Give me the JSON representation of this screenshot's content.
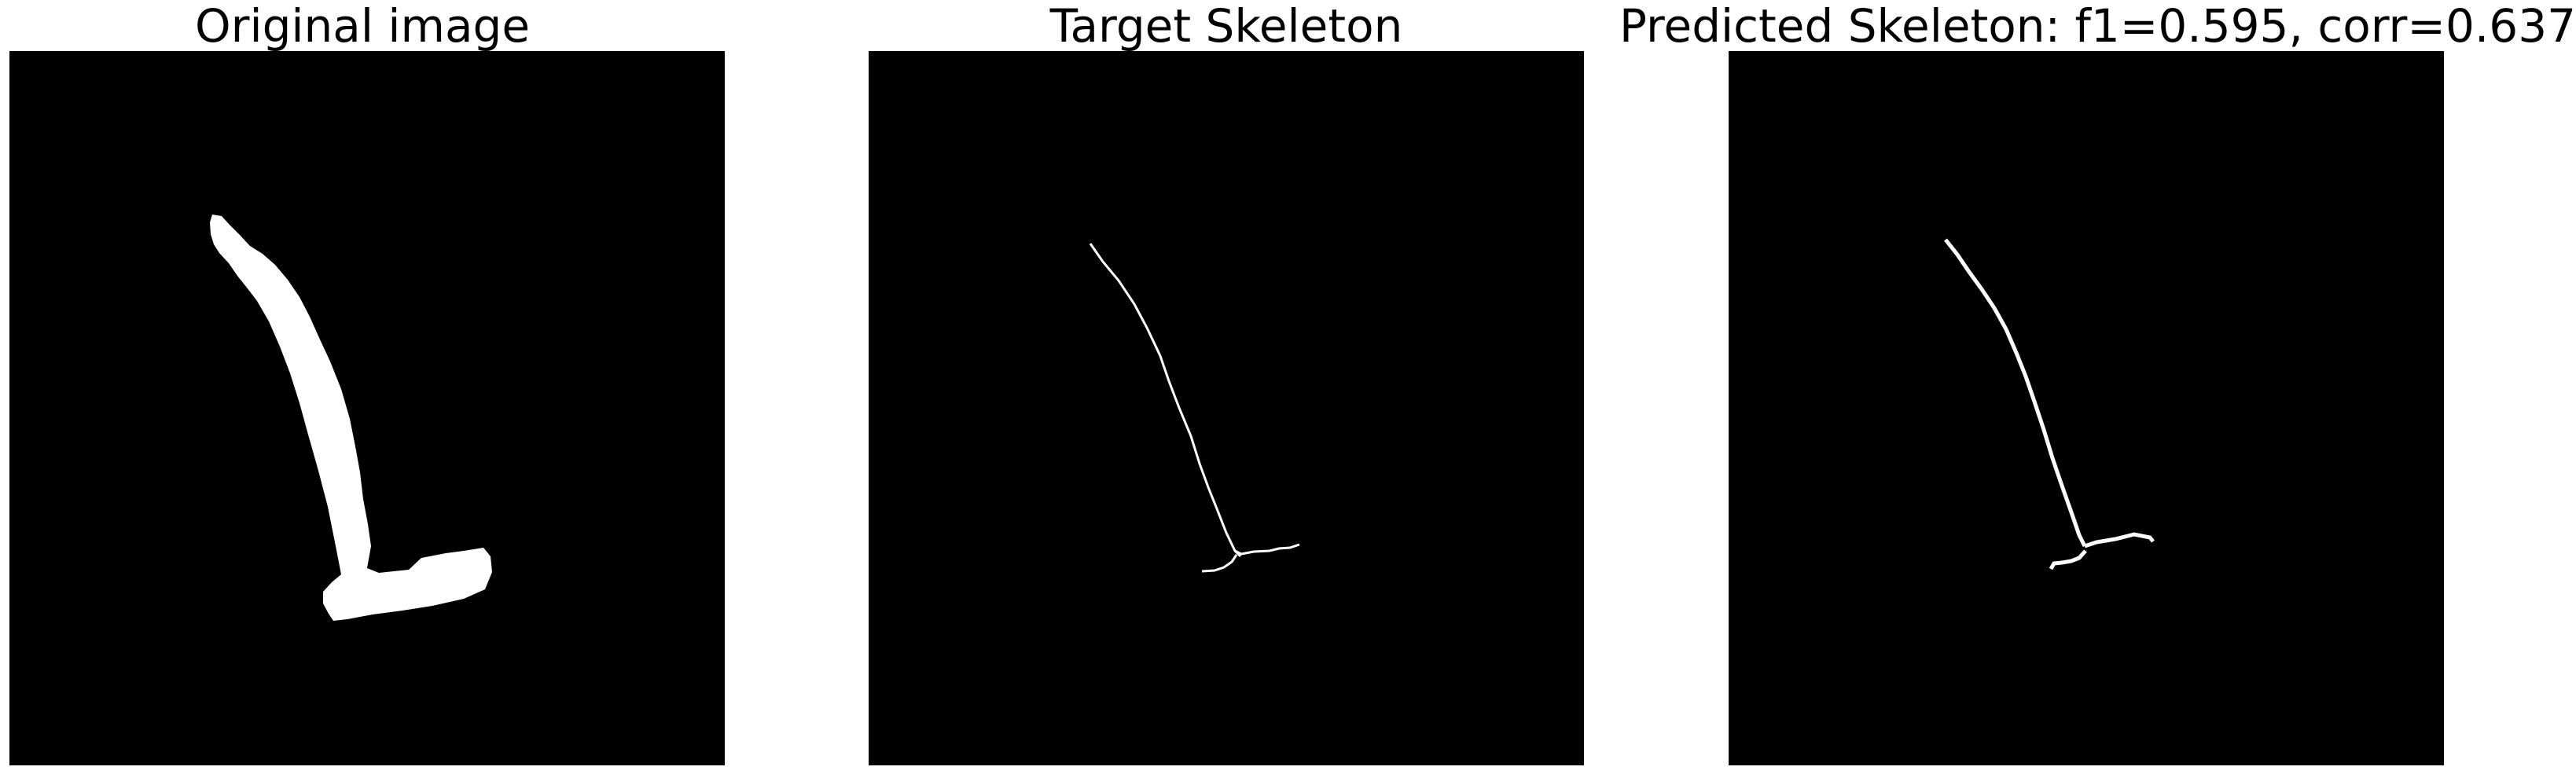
{
  "panels": [
    {
      "title": "Original image"
    },
    {
      "title": "Target Skeleton"
    },
    {
      "title": "Predicted Skeleton: f1=0.595, corr=0.637"
    }
  ],
  "colors": {
    "background": "#ffffff",
    "image_background": "#000000",
    "foreground": "#ffffff",
    "title_text": "#000000"
  }
}
